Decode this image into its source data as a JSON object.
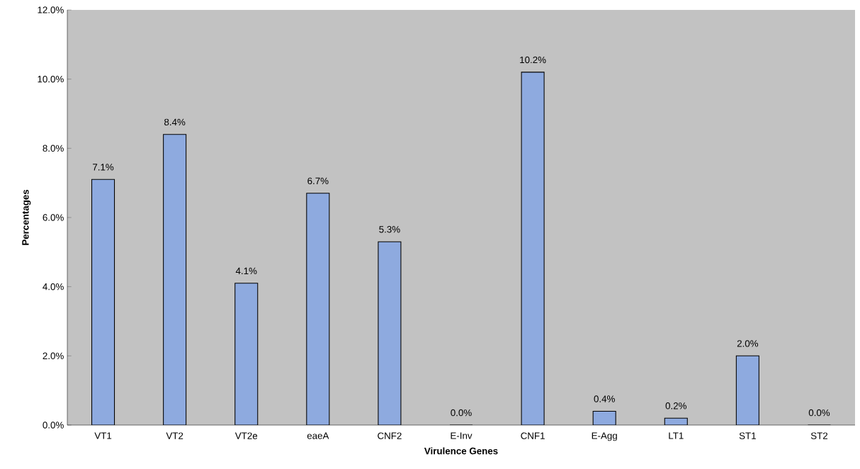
{
  "chart_data": {
    "type": "bar",
    "xlabel": "Virulence Genes",
    "ylabel": "Percentages",
    "categories": [
      "VT1",
      "VT2",
      "VT2e",
      "eaeA",
      "CNF2",
      "E-Inv",
      "CNF1",
      "E-Agg",
      "LT1",
      "ST1",
      "ST2"
    ],
    "values": [
      7.1,
      8.4,
      4.1,
      6.7,
      5.3,
      0.0,
      10.2,
      0.4,
      0.2,
      2.0,
      0.0
    ],
    "value_labels": [
      "7.1%",
      "8.4%",
      "4.1%",
      "6.7%",
      "5.3%",
      "0.0%",
      "10.2%",
      "0.4%",
      "0.2%",
      "2.0%",
      "0.0%"
    ],
    "color": "#8eaadf",
    "ylim": [
      0,
      12
    ],
    "yticks": [
      {
        "value": 0,
        "label": "0.0%"
      },
      {
        "value": 2,
        "label": "2.0%"
      },
      {
        "value": 4,
        "label": "4.0%"
      },
      {
        "value": 6,
        "label": "6.0%"
      },
      {
        "value": 8,
        "label": "8.0%"
      },
      {
        "value": 10,
        "label": "10.0%"
      },
      {
        "value": 12,
        "label": "12.0%"
      }
    ],
    "grid": false
  }
}
